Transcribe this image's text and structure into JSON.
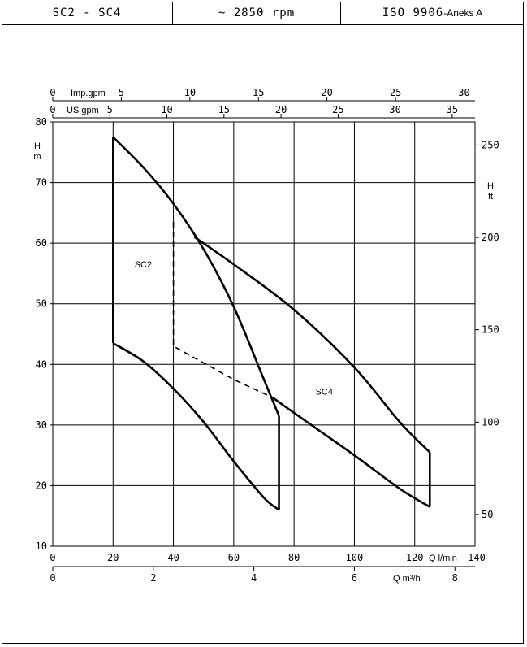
{
  "header": {
    "models": "SC2 - SC4",
    "speed": "~ 2850 rpm",
    "standard": "ISO 9906",
    "annex": "-Aneks A"
  },
  "chart_data": {
    "type": "line",
    "title": "",
    "grid": true,
    "axes": {
      "x_bottom": {
        "label": "Q l/min",
        "range": [
          0,
          140
        ],
        "ticks": [
          0,
          20,
          40,
          60,
          80,
          100,
          120,
          140
        ]
      },
      "x_bottom2": {
        "label": "Q m³/h",
        "range": [
          0,
          8.4
        ],
        "ticks": [
          0,
          2,
          4,
          6,
          8
        ]
      },
      "x_top1": {
        "label": "US gpm",
        "range": [
          0,
          37
        ],
        "ticks": [
          0,
          5,
          10,
          15,
          20,
          25,
          30,
          35
        ]
      },
      "x_top2": {
        "label": "Imp.gpm",
        "range": [
          0,
          30.8
        ],
        "ticks": [
          0,
          5,
          10,
          15,
          20,
          25,
          30
        ]
      },
      "y_left": {
        "label": "H m",
        "range": [
          10,
          80
        ],
        "ticks": [
          10,
          20,
          30,
          40,
          50,
          60,
          70,
          80
        ]
      },
      "y_right": {
        "label": "H ft",
        "range": [
          32.8,
          262.5
        ],
        "ticks": [
          50,
          100,
          150,
          200,
          250
        ]
      }
    },
    "series": [
      {
        "name": "SC2",
        "top_curve": [
          [
            20,
            77.5
          ],
          [
            30,
            72.5
          ],
          [
            40,
            66.5
          ],
          [
            50,
            59
          ],
          [
            60,
            49.5
          ],
          [
            70,
            37.5
          ],
          [
            75,
            31.5
          ]
        ],
        "bottom_curve": [
          [
            20,
            43.5
          ],
          [
            30,
            40.5
          ],
          [
            40,
            36
          ],
          [
            50,
            30.5
          ],
          [
            60,
            24
          ],
          [
            70,
            18
          ],
          [
            75,
            16
          ]
        ],
        "left_edge": [
          [
            20,
            43.5
          ],
          [
            20,
            77.5
          ]
        ],
        "right_edge": [
          [
            75,
            16
          ],
          [
            75,
            31.5
          ]
        ]
      },
      {
        "name": "SC4",
        "top_curve": [
          [
            47,
            61
          ],
          [
            60,
            56.5
          ],
          [
            80,
            49
          ],
          [
            100,
            39.5
          ],
          [
            115,
            30.5
          ],
          [
            125,
            25.5
          ]
        ],
        "bottom_curve": [
          [
            73,
            34.5
          ],
          [
            80,
            32
          ],
          [
            100,
            25
          ],
          [
            115,
            19.5
          ],
          [
            125,
            16.5
          ]
        ],
        "right_edge": [
          [
            125,
            16.5
          ],
          [
            125,
            25.5
          ]
        ]
      },
      {
        "name": "",
        "style": "dashed",
        "points": [
          [
            40,
            63.5
          ],
          [
            40,
            43
          ],
          [
            60,
            37.5
          ],
          [
            73,
            34.5
          ]
        ]
      }
    ],
    "labels": [
      {
        "text": "SC2",
        "at": [
          30,
          56
        ]
      },
      {
        "text": "SC4",
        "at": [
          90,
          35
        ]
      }
    ]
  }
}
